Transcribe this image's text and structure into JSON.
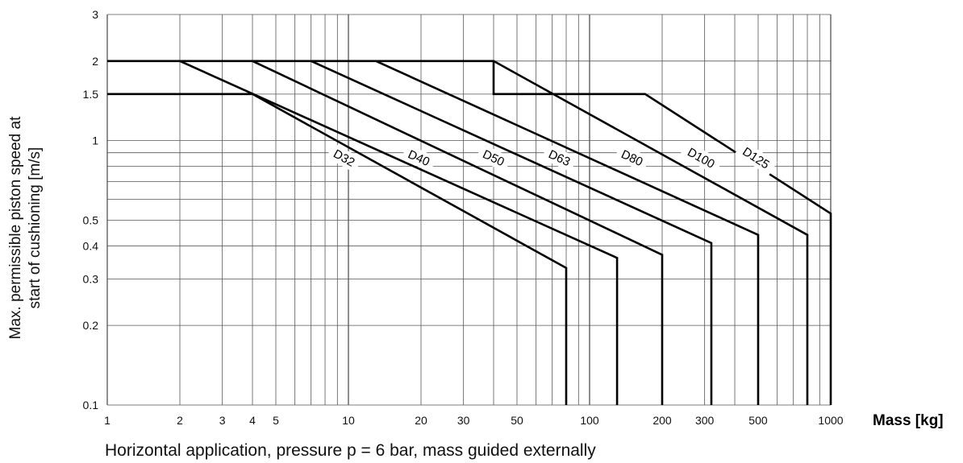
{
  "chart_data": {
    "type": "line",
    "x_scale": "log",
    "y_scale": "log",
    "xlim": [
      1,
      1000
    ],
    "ylim": [
      0.1,
      3
    ],
    "grid": true,
    "ylabel": "Max. permissible piston speed at start of cushioning [m/s]",
    "ylabel_lines": [
      "Max. permissible piston speed at",
      "start of cushioning [m/s]"
    ],
    "xlabel": "Mass [kg]",
    "caption": "Horizontal application, pressure p = 6 bar, mass guided externally",
    "x_ticks": [
      1,
      2,
      3,
      4,
      5,
      10,
      20,
      30,
      50,
      100,
      200,
      300,
      500,
      1000
    ],
    "x_tick_labels": [
      "1",
      "2",
      "3",
      "4",
      "5",
      "10",
      "20",
      "30",
      "50",
      "100",
      "200",
      "300",
      "500",
      "1000"
    ],
    "y_ticks": [
      0.1,
      0.2,
      0.3,
      0.4,
      0.5,
      1,
      1.5,
      2,
      3
    ],
    "y_tick_labels": [
      "0.1",
      "0.2",
      "0.3",
      "0.4",
      "0.5",
      "1",
      "1.5",
      "2",
      "3"
    ],
    "series": [
      {
        "name": "D32",
        "points": [
          [
            1,
            1.5
          ],
          [
            4,
            1.5
          ],
          [
            80,
            0.33
          ],
          [
            80,
            0.1
          ]
        ],
        "label_at": [
          9.6,
          0.86
        ]
      },
      {
        "name": "D40",
        "points": [
          [
            1,
            2
          ],
          [
            2,
            2
          ],
          [
            130,
            0.36
          ],
          [
            130,
            0.1
          ]
        ],
        "label_at": [
          19.6,
          0.86
        ]
      },
      {
        "name": "D50",
        "points": [
          [
            2,
            2
          ],
          [
            4,
            2
          ],
          [
            200,
            0.37
          ],
          [
            200,
            0.1
          ]
        ],
        "label_at": [
          40,
          0.86
        ]
      },
      {
        "name": "D63",
        "points": [
          [
            4,
            2
          ],
          [
            7,
            2
          ],
          [
            320,
            0.41
          ],
          [
            320,
            0.1
          ]
        ],
        "label_at": [
          75,
          0.86
        ]
      },
      {
        "name": "D80",
        "points": [
          [
            7,
            2
          ],
          [
            13,
            2
          ],
          [
            500,
            0.44
          ],
          [
            500,
            0.1
          ]
        ],
        "label_at": [
          150,
          0.86
        ]
      },
      {
        "name": "D100",
        "points": [
          [
            13,
            2
          ],
          [
            40,
            2
          ],
          [
            800,
            0.44
          ],
          [
            800,
            0.1
          ]
        ],
        "label_at": [
          290,
          0.86
        ]
      },
      {
        "name": "D125",
        "points": [
          [
            40,
            2
          ],
          [
            40,
            1.5
          ],
          [
            170,
            1.5
          ],
          [
            1000,
            0.53
          ],
          [
            1000,
            0.1
          ]
        ],
        "label_at": [
          490,
          0.86
        ]
      }
    ]
  }
}
